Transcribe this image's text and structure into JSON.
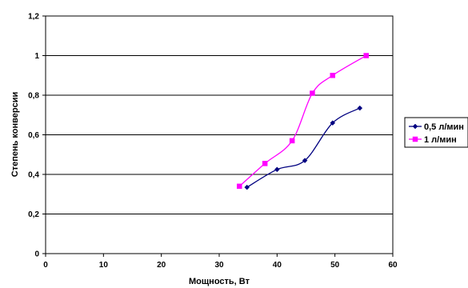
{
  "chart_data": {
    "type": "line",
    "xlabel": "Мощность, Вт",
    "ylabel": "Степень конверсии",
    "xlim": [
      0,
      60
    ],
    "ylim": [
      0,
      1.2
    ],
    "x_ticks": [
      "0",
      "10",
      "20",
      "30",
      "40",
      "50",
      "60"
    ],
    "y_ticks": [
      "0",
      "0,2",
      "0,4",
      "0,6",
      "0,8",
      "1",
      "1,2"
    ],
    "grid": "horizontal",
    "legend": "right",
    "series": [
      {
        "name": "0,5 л/мин",
        "color": "#000080",
        "marker": "diamond",
        "points": [
          [
            34.8,
            0.335
          ],
          [
            40.0,
            0.425
          ],
          [
            44.8,
            0.47
          ],
          [
            49.6,
            0.66
          ],
          [
            54.3,
            0.735
          ]
        ]
      },
      {
        "name": "1 л/мин",
        "color": "#ff00ff",
        "marker": "square",
        "points": [
          [
            33.5,
            0.34
          ],
          [
            37.9,
            0.455
          ],
          [
            42.6,
            0.57
          ],
          [
            46.1,
            0.81
          ],
          [
            49.6,
            0.9
          ],
          [
            55.4,
            1.0
          ]
        ]
      }
    ]
  }
}
